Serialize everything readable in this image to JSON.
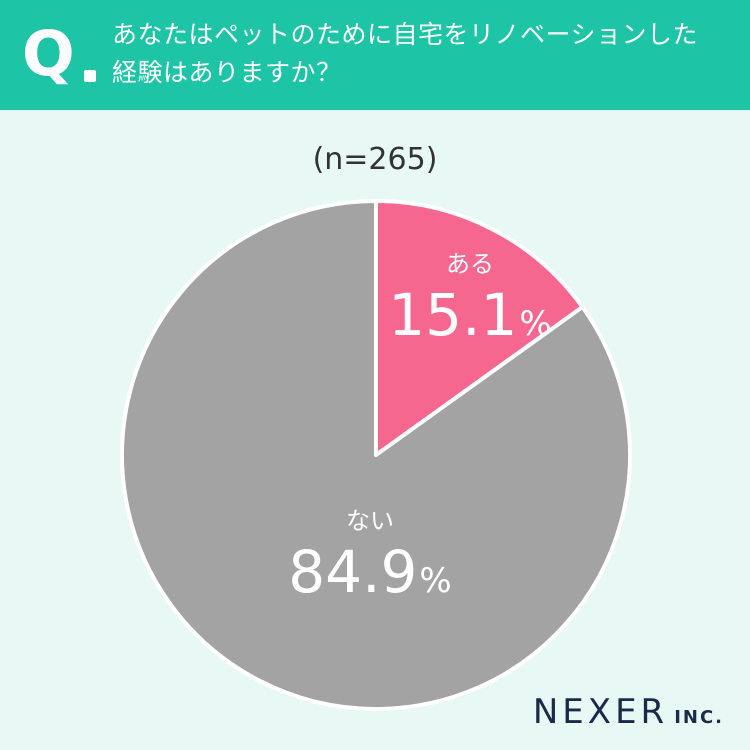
{
  "header": {
    "q_mark": "Q",
    "question_line1": "あなたはペットのために自宅をリノベーションした",
    "question_line2": "経験はありますか？"
  },
  "sample_size": "(n=265)",
  "colors": {
    "header_bg": "#1ec4a6",
    "page_bg": "#e8f8f5",
    "yes": "#f5678f",
    "no": "#a3a3a3"
  },
  "chart_data": {
    "type": "pie",
    "title": "",
    "slices": [
      {
        "label": "ある",
        "value": 15.1,
        "display": "15.1",
        "unit": "%",
        "color": "#f5678f"
      },
      {
        "label": "ない",
        "value": 84.9,
        "display": "84.9",
        "unit": "%",
        "color": "#a3a3a3"
      }
    ]
  },
  "logo": {
    "main": "NEXER",
    "sub": "INC."
  }
}
